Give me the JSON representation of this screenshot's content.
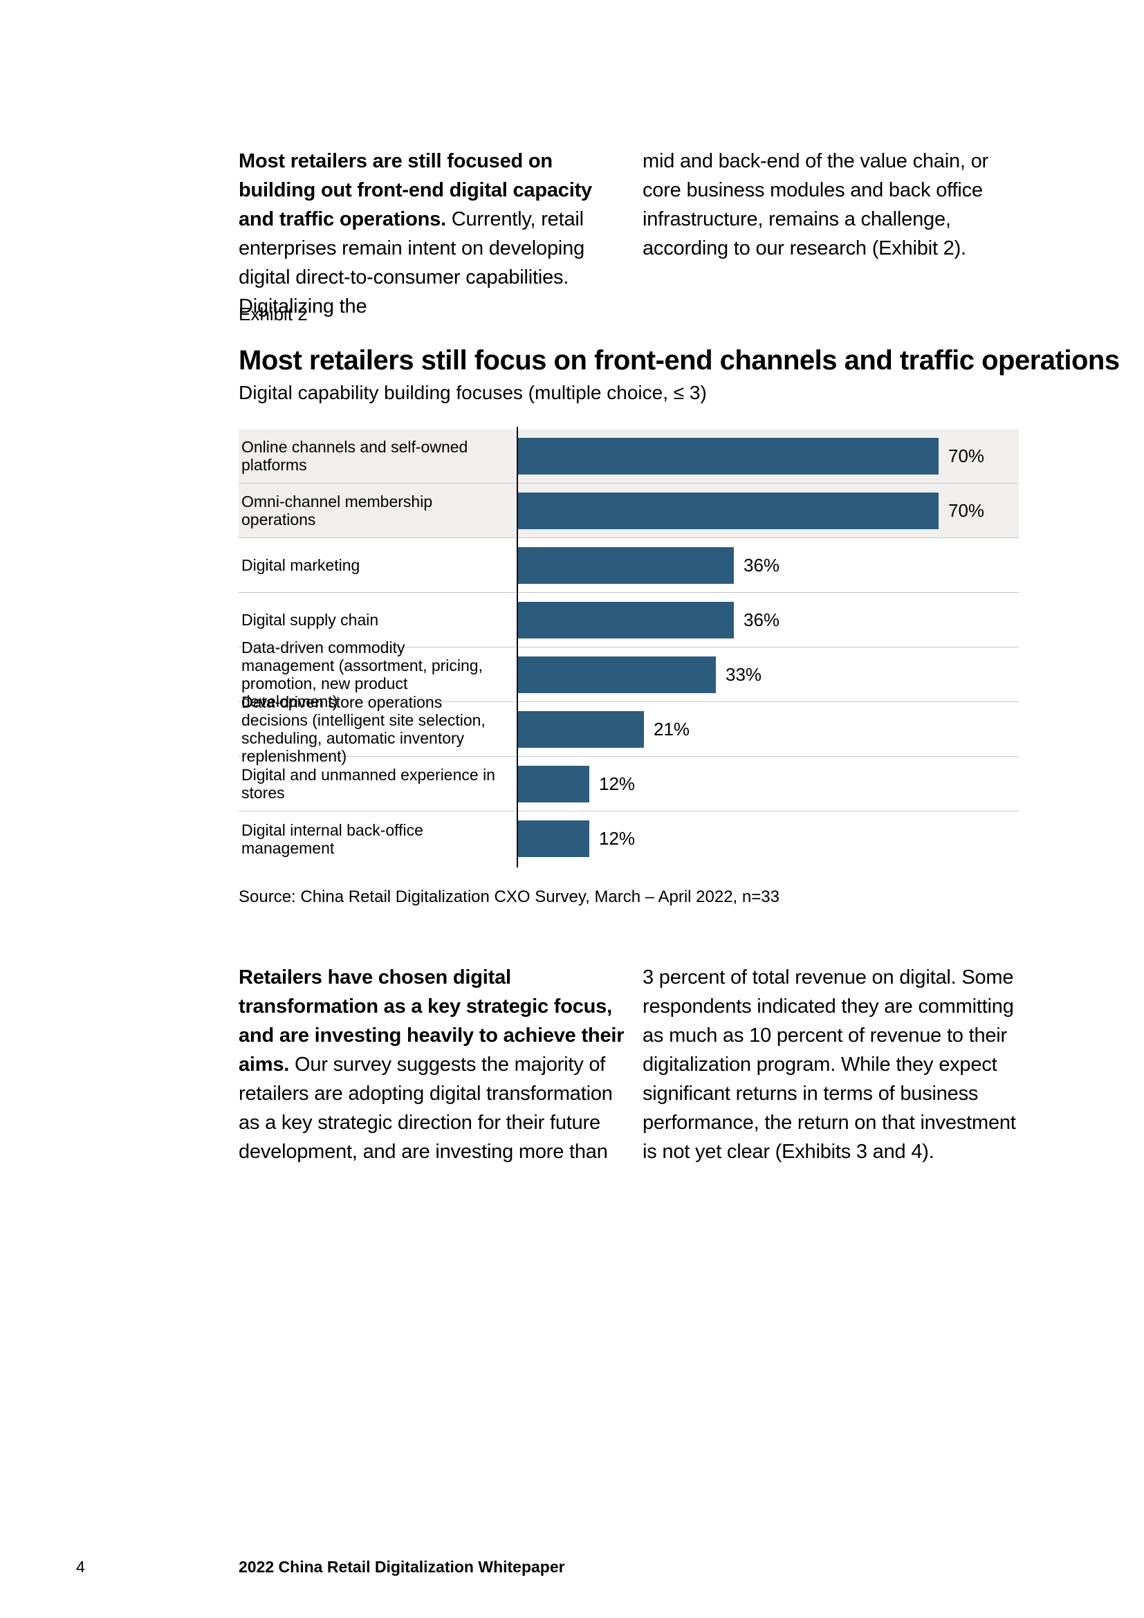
{
  "intro": {
    "left_bold": "Most retailers are still focused on building out front-end digital capacity and traffic operations.",
    "left_regular": " Currently, retail enterprises remain intent on developing digital direct-to-consumer capabilities. Digitalizing the",
    "right": "mid and back-end of the value chain, or core business modules and back office infrastructure, remains a challenge, according to our research (Exhibit 2)."
  },
  "exhibit": {
    "label": "Exhibit 2",
    "title": "Most retailers still focus on front-end channels and traffic operations",
    "subtitle": "Digital capability building focuses (multiple choice, ≤ 3)",
    "source": "Source: China Retail Digitalization CXO Survey, March – April 2022, n=33"
  },
  "chart_data": {
    "type": "bar",
    "orientation": "horizontal",
    "title": "Most retailers still focus on front-end channels and traffic operations",
    "subtitle": "Digital capability building focuses (multiple choice, ≤ 3)",
    "source": "Source: China Retail Digitalization CXO Survey, March – April 2022, n=33",
    "unit": "%",
    "categories": [
      "Online channels and self-owned platforms",
      "Omni-channel membership operations",
      "Digital marketing",
      "Digital supply chain",
      "Data-driven commodity management (assortment, pricing, promotion, new product development)",
      "Data-driven store operations decisions (intelligent site selection, scheduling, automatic inventory replenishment)",
      "Digital and unmanned experience in stores",
      "Digital internal back-office management"
    ],
    "values": [
      70,
      70,
      36,
      36,
      33,
      21,
      12,
      12
    ],
    "value_labels": [
      "70%",
      "70%",
      "36%",
      "36%",
      "33%",
      "21%",
      "12%",
      "12%"
    ],
    "highlighted_rows": [
      0,
      1
    ],
    "bar_color": "#2b5b7d",
    "highlight_row_bg": "#f0efed",
    "axis_range": [
      0,
      80
    ],
    "grid": false,
    "legend": false
  },
  "body2": {
    "left_bold": "Retailers have chosen digital transformation as a key strategic focus, and are investing heavily to achieve their aims.",
    "left_regular": " Our survey suggests the majority of retailers are adopting digital transformation as a key strategic direction for their future development, and are investing more than",
    "right": "3 percent of total revenue on digital. Some respondents indicated they are committing as much as 10 percent of revenue to their digitalization program. While they expect significant returns in terms of business performance, the return on that investment is not yet clear (Exhibits 3 and 4)."
  },
  "page": {
    "number": "4",
    "footer_title": "2022 China Retail Digitalization Whitepaper"
  }
}
